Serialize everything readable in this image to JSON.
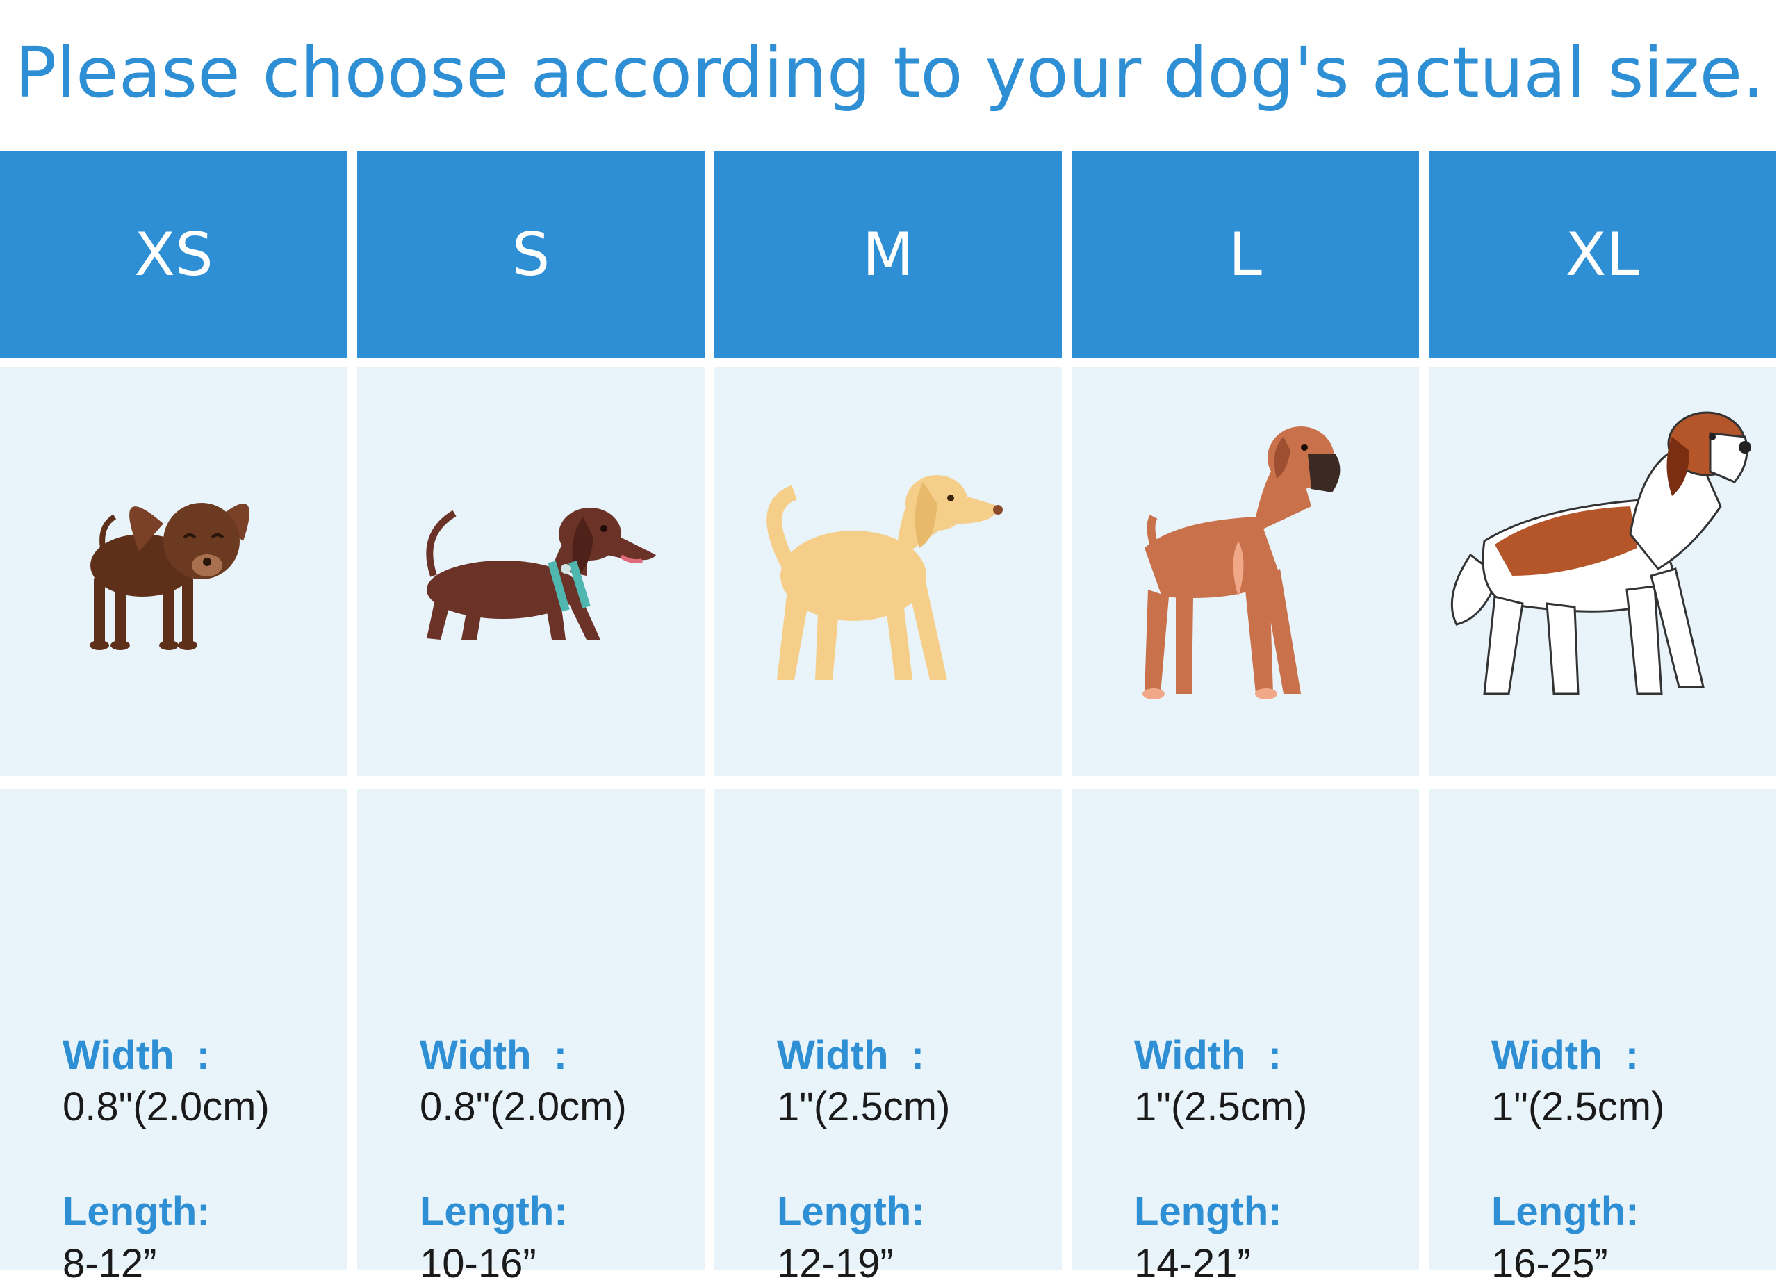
{
  "title": "Please choose according to your dog's actual size.",
  "colors": {
    "accent": "#2e8fd4",
    "panel": "#e8f3fa"
  },
  "sizes": [
    {
      "label": "XS",
      "dog_icon": "chihuahua-icon",
      "width_label": "Width  :",
      "width_value": "0.8\"(2.0cm)",
      "length_label": "Length:",
      "length_value": "8-12”"
    },
    {
      "label": "S",
      "dog_icon": "dachshund-icon",
      "width_label": "Width  :",
      "width_value": "0.8\"(2.0cm)",
      "length_label": "Length:",
      "length_value": "10-16”"
    },
    {
      "label": "M",
      "dog_icon": "golden-retriever-icon",
      "width_label": "Width  :",
      "width_value": "1\"(2.5cm)",
      "length_label": "Length:",
      "length_value": "12-19”"
    },
    {
      "label": "L",
      "dog_icon": "boxer-icon",
      "width_label": "Width  :",
      "width_value": "1\"(2.5cm)",
      "length_label": "Length:",
      "length_value": "14-21”"
    },
    {
      "label": "XL",
      "dog_icon": "saint-bernard-icon",
      "width_label": "Width  :",
      "width_value": "1\"(2.5cm)",
      "length_label": "Length:",
      "length_value": "16-25”"
    }
  ]
}
